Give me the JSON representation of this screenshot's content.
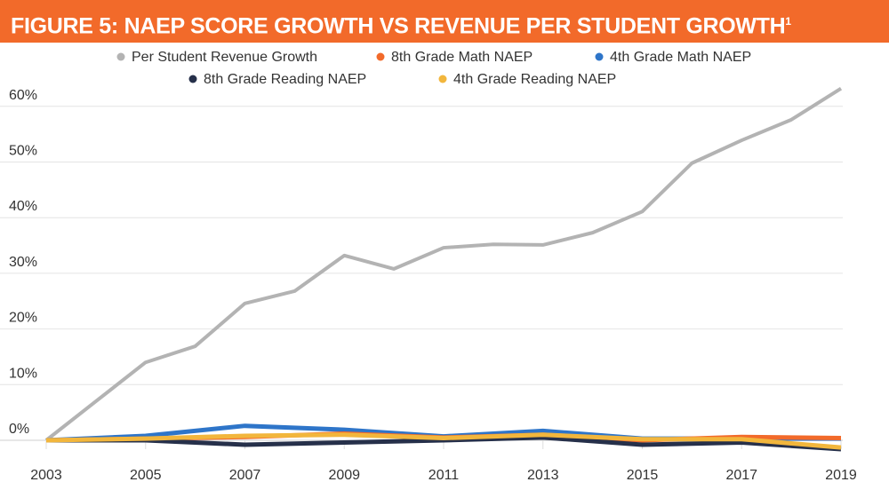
{
  "chart_data": {
    "type": "line",
    "title": "FIGURE 5: NAEP SCORE GROWTH VS REVENUE PER STUDENT GROWTH",
    "title_footnote": "1",
    "xlabel": "",
    "ylabel": "",
    "x_ticks": [
      "2003",
      "2005",
      "2007",
      "2009",
      "2011",
      "2013",
      "2015",
      "2017",
      "2019"
    ],
    "y_ticks": [
      "0%",
      "10%",
      "20%",
      "30%",
      "40%",
      "50%",
      "60%"
    ],
    "xlim": [
      2003,
      2019
    ],
    "ylim": [
      -2,
      65
    ],
    "grid": true,
    "legend_position": "top",
    "series": [
      {
        "name": "Per Student Revenue Growth",
        "color": "#b3b3b3",
        "x": [
          2003,
          2004,
          2005,
          2006,
          2007,
          2008,
          2009,
          2010,
          2011,
          2012,
          2013,
          2014,
          2015,
          2016,
          2017,
          2018,
          2019
        ],
        "values": [
          0,
          7,
          14,
          16.9,
          24.6,
          26.8,
          33.2,
          30.8,
          34.6,
          35.2,
          35.1,
          37.3,
          41.1,
          49.8,
          53.9,
          57.6,
          63.2
        ]
      },
      {
        "name": "8th Grade Math NAEP",
        "color": "#f26a2a",
        "x": [
          2003,
          2005,
          2007,
          2009,
          2011,
          2013,
          2015,
          2017,
          2019
        ],
        "values": [
          0,
          0.3,
          0.6,
          1.2,
          0.5,
          1.0,
          0.0,
          0.6,
          0.4
        ]
      },
      {
        "name": "4th Grade Math NAEP",
        "color": "#2e75c9",
        "x": [
          2003,
          2005,
          2007,
          2009,
          2011,
          2013,
          2015,
          2017,
          2019
        ],
        "values": [
          0,
          0.8,
          2.6,
          1.9,
          0.7,
          1.7,
          0.3,
          0.3,
          0.3
        ]
      },
      {
        "name": "8th Grade Reading NAEP",
        "color": "#26304a",
        "x": [
          2003,
          2005,
          2007,
          2009,
          2011,
          2013,
          2015,
          2017,
          2019
        ],
        "values": [
          0,
          0,
          -0.8,
          -0.4,
          0,
          0.5,
          -0.8,
          -0.4,
          -1.6
        ]
      },
      {
        "name": "4th Grade Reading NAEP",
        "color": "#f2b63c",
        "x": [
          2003,
          2005,
          2007,
          2009,
          2011,
          2013,
          2015,
          2017,
          2019
        ],
        "values": [
          0,
          0.3,
          0.8,
          1.0,
          0.4,
          1.0,
          0.2,
          0.2,
          -1.3
        ]
      }
    ]
  }
}
